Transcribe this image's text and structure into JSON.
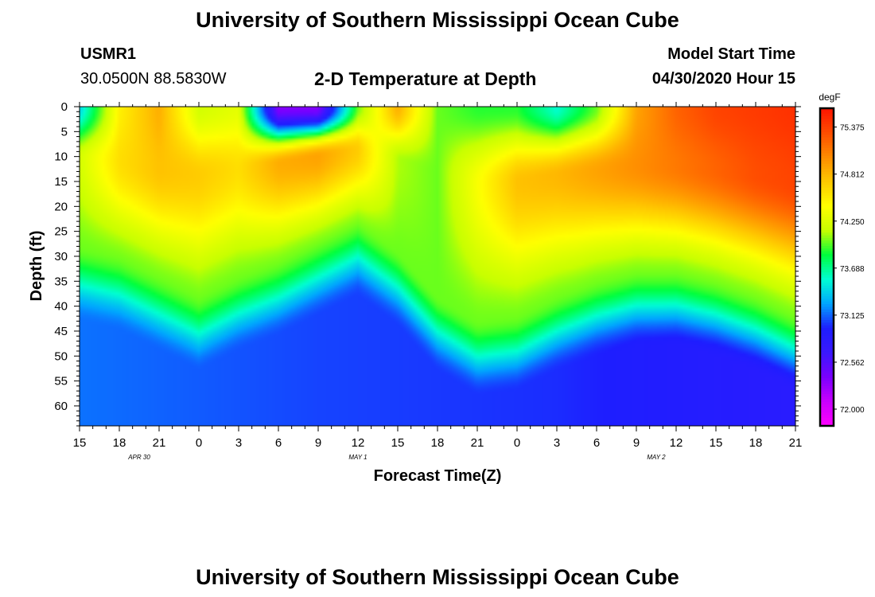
{
  "header": {
    "title_top": "University of Southern Mississippi Ocean Cube",
    "title_bottom": "University of Southern Mississippi Ocean Cube",
    "station_id": "USMR1",
    "station_coords": "30.0500N 88.5830W",
    "plot_title": "2-D Temperature at Depth",
    "start_label": "Model Start Time",
    "start_value": "04/30/2020 Hour 15"
  },
  "chart_data": {
    "type": "heatmap",
    "title": "2-D Temperature at Depth",
    "xlabel": "Forecast Time(Z)",
    "ylabel": "Depth (ft)",
    "x_tick_labels": [
      "15",
      "18",
      "21",
      "0",
      "3",
      "6",
      "9",
      "12",
      "15",
      "18",
      "21",
      "0",
      "3",
      "6",
      "9",
      "12",
      "15",
      "18",
      "21"
    ],
    "x_range_hours": [
      0,
      54
    ],
    "date_labels": [
      {
        "label": "APR 30",
        "hour": 4.5
      },
      {
        "label": "MAY 1",
        "hour": 21
      },
      {
        "label": "MAY 2",
        "hour": 43.5
      }
    ],
    "y_tick_labels": [
      "0",
      "5",
      "10",
      "15",
      "20",
      "25",
      "30",
      "35",
      "40",
      "45",
      "50",
      "55",
      "60"
    ],
    "ylim": [
      0,
      64
    ],
    "colorbar": {
      "unit": "degF",
      "tick_labels": [
        "75.375",
        "74.812",
        "74.250",
        "73.688",
        "73.125",
        "72.562",
        "72.000"
      ],
      "min": 71.8,
      "max": 75.6,
      "colors": [
        "#ff00ff",
        "#c800ff",
        "#7a00ff",
        "#3a18ff",
        "#1e1eff",
        "#00a6ff",
        "#00ffd2",
        "#00ff3c",
        "#c8ff00",
        "#ffff00",
        "#ffc800",
        "#ff8c00",
        "#ff4c00",
        "#ff1400"
      ]
    },
    "thermocline_depth_ft": [
      {
        "hour": 0,
        "depth": 30
      },
      {
        "hour": 3,
        "depth": 32
      },
      {
        "hour": 6,
        "depth": 36
      },
      {
        "hour": 9,
        "depth": 40
      },
      {
        "hour": 12,
        "depth": 36
      },
      {
        "hour": 15,
        "depth": 33
      },
      {
        "hour": 18,
        "depth": 29
      },
      {
        "hour": 21,
        "depth": 25
      },
      {
        "hour": 24,
        "depth": 31
      },
      {
        "hour": 27,
        "depth": 40
      },
      {
        "hour": 30,
        "depth": 45
      },
      {
        "hour": 33,
        "depth": 44
      },
      {
        "hour": 36,
        "depth": 40
      },
      {
        "hour": 39,
        "depth": 37
      },
      {
        "hour": 42,
        "depth": 35
      },
      {
        "hour": 45,
        "depth": 35
      },
      {
        "hour": 48,
        "depth": 37
      },
      {
        "hour": 51,
        "depth": 40
      },
      {
        "hour": 54,
        "depth": 44
      }
    ],
    "surface_temp_degF": [
      {
        "hour": 0,
        "temp": 73.4
      },
      {
        "hour": 3,
        "temp": 74.5
      },
      {
        "hour": 6,
        "temp": 74.85
      },
      {
        "hour": 9,
        "temp": 74.2
      },
      {
        "hour": 12,
        "temp": 74.3
      },
      {
        "hour": 15,
        "temp": 72.35
      },
      {
        "hour": 18,
        "temp": 72.35
      },
      {
        "hour": 21,
        "temp": 74.0
      },
      {
        "hour": 24,
        "temp": 74.85
      },
      {
        "hour": 27,
        "temp": 74.0
      },
      {
        "hour": 30,
        "temp": 73.9
      },
      {
        "hour": 33,
        "temp": 73.9
      },
      {
        "hour": 36,
        "temp": 73.55
      },
      {
        "hour": 39,
        "temp": 74.0
      },
      {
        "hour": 42,
        "temp": 74.9
      },
      {
        "hour": 45,
        "temp": 75.2
      },
      {
        "hour": 48,
        "temp": 75.35
      },
      {
        "hour": 51,
        "temp": 75.4
      },
      {
        "hour": 54,
        "temp": 75.45
      }
    ],
    "upper_layer_temp_degF": [
      {
        "hour": 0,
        "temp": 74.2
      },
      {
        "hour": 3,
        "temp": 74.6
      },
      {
        "hour": 6,
        "temp": 74.75
      },
      {
        "hour": 9,
        "temp": 74.7
      },
      {
        "hour": 12,
        "temp": 74.6
      },
      {
        "hour": 15,
        "temp": 74.85
      },
      {
        "hour": 18,
        "temp": 74.9
      },
      {
        "hour": 21,
        "temp": 74.7
      },
      {
        "hour": 24,
        "temp": 74.1
      },
      {
        "hour": 27,
        "temp": 74.0
      },
      {
        "hour": 30,
        "temp": 74.4
      },
      {
        "hour": 33,
        "temp": 74.75
      },
      {
        "hour": 36,
        "temp": 74.8
      },
      {
        "hour": 39,
        "temp": 74.9
      },
      {
        "hour": 42,
        "temp": 75.0
      },
      {
        "hour": 45,
        "temp": 75.1
      },
      {
        "hour": 48,
        "temp": 75.2
      },
      {
        "hour": 51,
        "temp": 75.3
      },
      {
        "hour": 54,
        "temp": 75.35
      }
    ],
    "bottom_temp_degF": [
      {
        "hour": 0,
        "temp": 73.15
      },
      {
        "hour": 18,
        "temp": 73.05
      },
      {
        "hour": 36,
        "temp": 73.0
      },
      {
        "hour": 54,
        "temp": 72.85
      }
    ]
  }
}
